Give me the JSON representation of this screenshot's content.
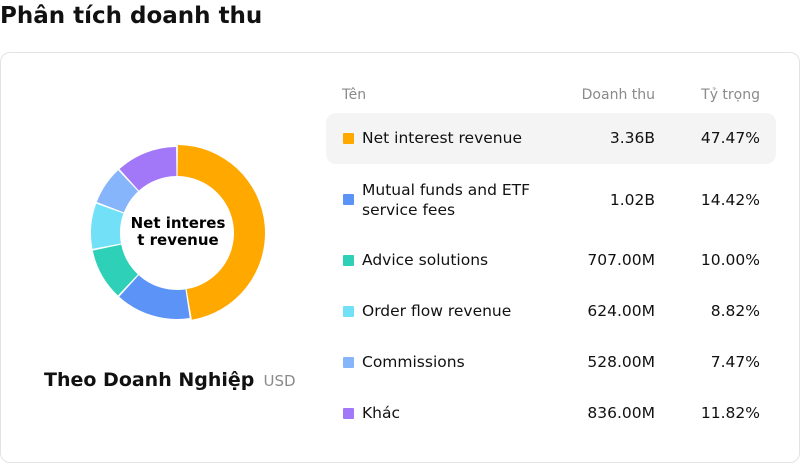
{
  "page": {
    "title": "Phân tích doanh thu"
  },
  "chart": {
    "center_label": "Net interest revenue",
    "title": "Theo Doanh Nghiệp",
    "unit": "USD"
  },
  "table": {
    "headers": {
      "name": "Tên",
      "revenue": "Doanh thu",
      "share": "Tỷ trọng"
    },
    "rows": [
      {
        "name": "Net interest revenue",
        "revenue": "3.36B",
        "share": "47.47%",
        "color": "#FFA800"
      },
      {
        "name": "Mutual funds and ETF service fees",
        "revenue": "1.02B",
        "share": "14.42%",
        "color": "#5B93F7"
      },
      {
        "name": "Advice solutions",
        "revenue": "707.00M",
        "share": "10.00%",
        "color": "#2FD0B8"
      },
      {
        "name": "Order flow revenue",
        "revenue": "624.00M",
        "share": "8.82%",
        "color": "#72E1F8"
      },
      {
        "name": "Commissions",
        "revenue": "528.00M",
        "share": "7.47%",
        "color": "#86B5FB"
      },
      {
        "name": "Khác",
        "revenue": "836.00M",
        "share": "11.82%",
        "color": "#A278F8"
      }
    ]
  },
  "chart_data": {
    "type": "pie",
    "categories": [
      "Net interest revenue",
      "Mutual funds and ETF service fees",
      "Advice solutions",
      "Order flow revenue",
      "Commissions",
      "Khác"
    ],
    "values": [
      47.47,
      14.42,
      10.0,
      8.82,
      7.47,
      11.82
    ],
    "colors": [
      "#FFA800",
      "#5B93F7",
      "#2FD0B8",
      "#72E1F8",
      "#86B5FB",
      "#A278F8"
    ],
    "selected": "Net interest revenue"
  }
}
